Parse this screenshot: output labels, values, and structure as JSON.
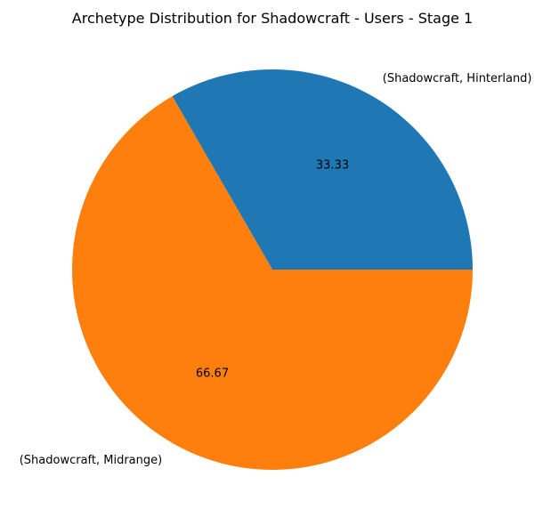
{
  "chart_data": {
    "type": "pie",
    "title": "Archetype Distribution for Shadowcraft - Users - Stage 1",
    "slices": [
      {
        "label": "(Shadowcraft, Hinterland)",
        "value": 33.33,
        "pct_label": "33.33",
        "color": "#1f77b4"
      },
      {
        "label": "(Shadowcraft, Midrange)",
        "value": 66.67,
        "pct_label": "66.67",
        "color": "#ff7f0e"
      }
    ],
    "start_angle_deg": 0,
    "direction": "counterclockwise",
    "legend": "none"
  }
}
